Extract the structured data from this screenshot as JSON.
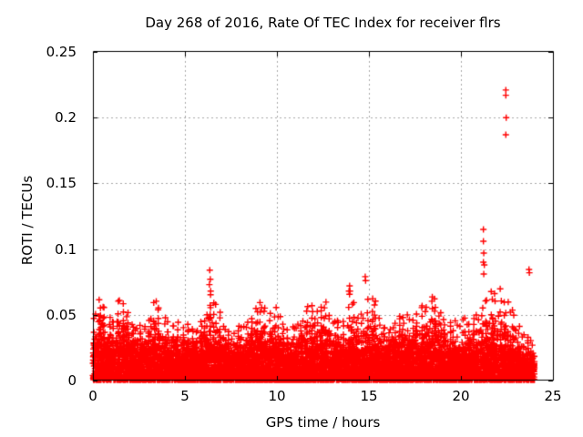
{
  "chart_data": {
    "type": "scatter",
    "title": "Day 268 of 2016, Rate Of TEC Index for receiver flrs",
    "xlabel": "GPS time / hours",
    "ylabel": "ROTI / TECUs",
    "xlim": [
      0,
      25
    ],
    "ylim": [
      0,
      0.25
    ],
    "xticks": [
      0,
      5,
      10,
      15,
      20,
      25
    ],
    "xtick_labels": [
      "0",
      "5",
      "10",
      "15",
      "20",
      "25"
    ],
    "yticks": [
      0,
      0.05,
      0.1,
      0.15,
      0.2,
      0.25
    ],
    "ytick_labels": [
      "0",
      "0.05",
      "0.1",
      "0.15",
      "0.2",
      "0.25"
    ],
    "grid": true,
    "legend": "none",
    "marker": "plus",
    "marker_color": "#ff0000",
    "marker_size_px": 7,
    "grid_color": "#a8a8a8",
    "axis_color": "#000000",
    "data_hours_range": [
      0,
      23.95
    ],
    "density_bins": {
      "bin_width_hours": 0.25,
      "columns": [
        "hour_start",
        "dense_mass_top_roti",
        "envelope_max_roti"
      ],
      "rows": [
        [
          0.0,
          0.024,
          0.05
        ],
        [
          0.25,
          0.028,
          0.062
        ],
        [
          0.5,
          0.026,
          0.058
        ],
        [
          0.75,
          0.022,
          0.048
        ],
        [
          1.0,
          0.022,
          0.045
        ],
        [
          1.25,
          0.028,
          0.063
        ],
        [
          1.5,
          0.026,
          0.06
        ],
        [
          1.75,
          0.024,
          0.053
        ],
        [
          2.0,
          0.022,
          0.045
        ],
        [
          2.25,
          0.02,
          0.04
        ],
        [
          2.5,
          0.02,
          0.042
        ],
        [
          2.75,
          0.022,
          0.042
        ],
        [
          3.0,
          0.022,
          0.048
        ],
        [
          3.25,
          0.026,
          0.061
        ],
        [
          3.5,
          0.024,
          0.058
        ],
        [
          3.75,
          0.022,
          0.048
        ],
        [
          4.0,
          0.02,
          0.044
        ],
        [
          4.25,
          0.02,
          0.042
        ],
        [
          4.5,
          0.02,
          0.044
        ],
        [
          4.75,
          0.018,
          0.04
        ],
        [
          5.0,
          0.02,
          0.042
        ],
        [
          5.25,
          0.018,
          0.04
        ],
        [
          5.5,
          0.018,
          0.038
        ],
        [
          5.75,
          0.02,
          0.044
        ],
        [
          6.0,
          0.022,
          0.05
        ],
        [
          6.25,
          0.026,
          0.066
        ],
        [
          6.5,
          0.024,
          0.06
        ],
        [
          6.75,
          0.022,
          0.052
        ],
        [
          7.0,
          0.02,
          0.042
        ],
        [
          7.25,
          0.018,
          0.038
        ],
        [
          7.5,
          0.018,
          0.036
        ],
        [
          7.75,
          0.018,
          0.04
        ],
        [
          8.0,
          0.02,
          0.042
        ],
        [
          8.25,
          0.02,
          0.044
        ],
        [
          8.5,
          0.022,
          0.048
        ],
        [
          8.75,
          0.024,
          0.056
        ],
        [
          9.0,
          0.026,
          0.062
        ],
        [
          9.25,
          0.024,
          0.056
        ],
        [
          9.5,
          0.022,
          0.05
        ],
        [
          9.75,
          0.024,
          0.056
        ],
        [
          10.0,
          0.022,
          0.05
        ],
        [
          10.25,
          0.018,
          0.042
        ],
        [
          10.5,
          0.016,
          0.038
        ],
        [
          10.75,
          0.018,
          0.04
        ],
        [
          11.0,
          0.02,
          0.044
        ],
        [
          11.25,
          0.022,
          0.048
        ],
        [
          11.5,
          0.024,
          0.058
        ],
        [
          11.75,
          0.024,
          0.057
        ],
        [
          12.0,
          0.022,
          0.052
        ],
        [
          12.25,
          0.024,
          0.058
        ],
        [
          12.5,
          0.026,
          0.062
        ],
        [
          12.75,
          0.022,
          0.052
        ],
        [
          13.0,
          0.02,
          0.047
        ],
        [
          13.25,
          0.02,
          0.047
        ],
        [
          13.5,
          0.02,
          0.044
        ],
        [
          13.75,
          0.022,
          0.068
        ],
        [
          14.0,
          0.022,
          0.06
        ],
        [
          14.25,
          0.02,
          0.048
        ],
        [
          14.5,
          0.02,
          0.052
        ],
        [
          14.75,
          0.022,
          0.062
        ],
        [
          15.0,
          0.024,
          0.062
        ],
        [
          15.25,
          0.024,
          0.06
        ],
        [
          15.5,
          0.02,
          0.048
        ],
        [
          15.75,
          0.018,
          0.042
        ],
        [
          16.0,
          0.018,
          0.04
        ],
        [
          16.25,
          0.02,
          0.044
        ],
        [
          16.5,
          0.02,
          0.048
        ],
        [
          16.75,
          0.022,
          0.05
        ],
        [
          17.0,
          0.022,
          0.052
        ],
        [
          17.25,
          0.02,
          0.048
        ],
        [
          17.5,
          0.022,
          0.052
        ],
        [
          17.75,
          0.024,
          0.057
        ],
        [
          18.0,
          0.024,
          0.056
        ],
        [
          18.25,
          0.026,
          0.065
        ],
        [
          18.5,
          0.024,
          0.063
        ],
        [
          18.75,
          0.022,
          0.052
        ],
        [
          19.0,
          0.02,
          0.048
        ],
        [
          19.25,
          0.018,
          0.045
        ],
        [
          19.5,
          0.018,
          0.045
        ],
        [
          19.75,
          0.018,
          0.042
        ],
        [
          20.0,
          0.02,
          0.048
        ],
        [
          20.25,
          0.018,
          0.045
        ],
        [
          20.5,
          0.02,
          0.048
        ],
        [
          20.75,
          0.022,
          0.05
        ],
        [
          21.0,
          0.022,
          0.055
        ],
        [
          21.25,
          0.024,
          0.062
        ],
        [
          21.5,
          0.026,
          0.07
        ],
        [
          21.75,
          0.026,
          0.066
        ],
        [
          22.0,
          0.024,
          0.07
        ],
        [
          22.25,
          0.022,
          0.06
        ],
        [
          22.5,
          0.022,
          0.06
        ],
        [
          22.75,
          0.02,
          0.055
        ],
        [
          23.0,
          0.016,
          0.042
        ],
        [
          23.25,
          0.014,
          0.036
        ],
        [
          23.5,
          0.014,
          0.034
        ],
        [
          23.75,
          0.013,
          0.03
        ]
      ]
    },
    "outlier_points": {
      "columns": [
        "hour",
        "roti"
      ],
      "rows": [
        [
          6.33,
          0.073
        ],
        [
          6.35,
          0.084
        ],
        [
          6.38,
          0.077
        ],
        [
          6.4,
          0.068
        ],
        [
          13.95,
          0.072
        ],
        [
          13.97,
          0.068
        ],
        [
          14.8,
          0.079
        ],
        [
          14.82,
          0.076
        ],
        [
          21.22,
          0.115
        ],
        [
          21.22,
          0.106
        ],
        [
          21.24,
          0.097
        ],
        [
          21.22,
          0.09
        ],
        [
          21.27,
          0.088
        ],
        [
          21.24,
          0.081
        ],
        [
          22.44,
          0.221
        ],
        [
          22.44,
          0.217
        ],
        [
          22.46,
          0.2
        ],
        [
          22.44,
          0.187
        ],
        [
          23.7,
          0.0845
        ],
        [
          23.72,
          0.082
        ]
      ]
    }
  }
}
